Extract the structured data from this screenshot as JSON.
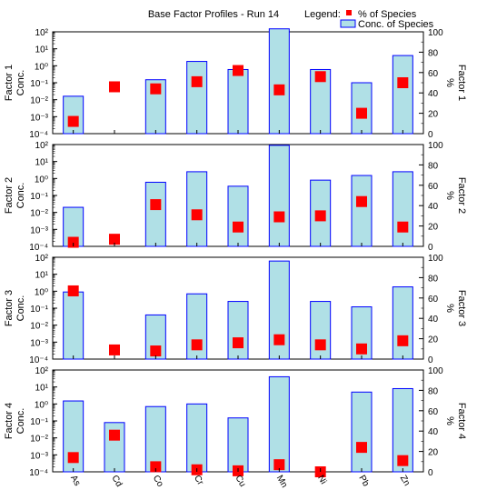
{
  "title": "Base Factor Profiles - Run 14",
  "legend": {
    "label": "Legend:",
    "items": [
      {
        "name": "% of Species",
        "marker": "square",
        "color": "#ff0000"
      },
      {
        "name": "Conc. of Species",
        "marker": "bar",
        "fill": "#b0e0e6",
        "stroke": "#0000ff"
      }
    ]
  },
  "species": [
    "As",
    "Cd",
    "Co",
    "Cr",
    "Cu",
    "Mn",
    "Ni",
    "Pb",
    "Zn"
  ],
  "left_ticks": [
    "10²",
    "10¹",
    "10⁰",
    "10⁻¹",
    "10⁻²",
    "10⁻³",
    "10⁻⁴"
  ],
  "right_ticks": [
    "100",
    "80",
    "60",
    "40",
    "20",
    "0"
  ],
  "chart_data": [
    {
      "type": "bar",
      "name": "Factor 1",
      "ylabel_left": [
        "Factor 1",
        "Conc."
      ],
      "ylabel_right": [
        "Factor 1",
        "%"
      ],
      "categories": [
        "As",
        "Cd",
        "Co",
        "Cr",
        "Cu",
        "Mn",
        "Ni",
        "Pb",
        "Zn"
      ],
      "conc": [
        0.016,
        null,
        0.15,
        1.8,
        0.6,
        150,
        0.6,
        0.1,
        4
      ],
      "percent": [
        12,
        46,
        44,
        51,
        62,
        43,
        56,
        20,
        50
      ],
      "ylim_left": [
        0.0001,
        100
      ],
      "ylim_right": [
        0,
        100
      ],
      "yscale_left": "log"
    },
    {
      "type": "bar",
      "name": "Factor 2",
      "ylabel_left": [
        "Factor 2",
        "Conc."
      ],
      "ylabel_right": [
        "Factor 2",
        "%"
      ],
      "categories": [
        "As",
        "Cd",
        "Co",
        "Cr",
        "Cu",
        "Mn",
        "Ni",
        "Pb",
        "Zn"
      ],
      "conc": [
        0.02,
        null,
        0.6,
        2.5,
        0.35,
        90,
        0.8,
        1.5,
        2.5
      ],
      "percent": [
        4,
        7,
        41,
        31,
        19,
        29,
        30,
        44,
        19
      ],
      "ylim_left": [
        0.0001,
        100
      ],
      "ylim_right": [
        0,
        100
      ],
      "yscale_left": "log"
    },
    {
      "type": "bar",
      "name": "Factor 3",
      "ylabel_left": [
        "Factor 3",
        "Conc."
      ],
      "ylabel_right": [
        "Factor 3",
        "%"
      ],
      "categories": [
        "As",
        "Cd",
        "Co",
        "Cr",
        "Cu",
        "Mn",
        "Ni",
        "Pb",
        "Zn"
      ],
      "conc": [
        0.9,
        null,
        0.04,
        0.7,
        0.25,
        60,
        0.25,
        0.12,
        1.8
      ],
      "percent": [
        67,
        9,
        8,
        14,
        16,
        19,
        14,
        10,
        18
      ],
      "ylim_left": [
        0.0001,
        100
      ],
      "ylim_right": [
        0,
        100
      ],
      "yscale_left": "log"
    },
    {
      "type": "bar",
      "name": "Factor 4",
      "ylabel_left": [
        "Factor 4",
        "Conc."
      ],
      "ylabel_right": [
        "Factor 4",
        "%"
      ],
      "categories": [
        "As",
        "Cd",
        "Co",
        "Cr",
        "Cu",
        "Mn",
        "Ni",
        "Pb",
        "Zn"
      ],
      "conc": [
        1.5,
        0.08,
        0.7,
        1.0,
        0.15,
        40,
        null,
        5,
        8
      ],
      "percent": [
        14,
        36,
        5,
        2,
        1,
        7,
        0,
        24,
        11
      ],
      "ylim_left": [
        0.0001,
        100
      ],
      "ylim_right": [
        0,
        100
      ],
      "yscale_left": "log"
    }
  ]
}
